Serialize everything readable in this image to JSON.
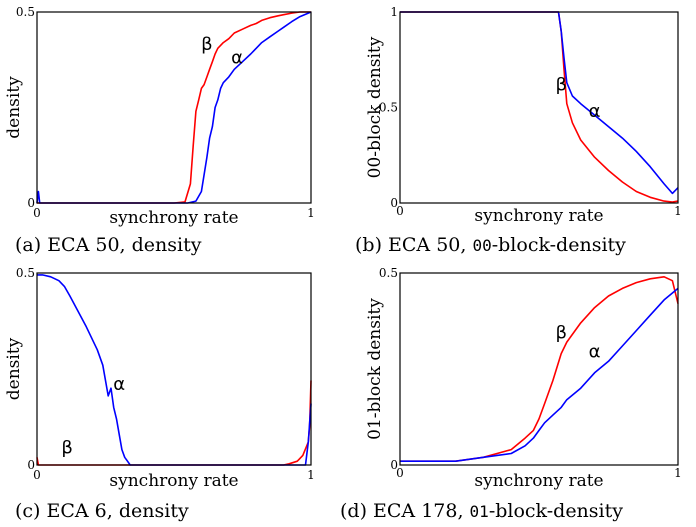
{
  "figure": {
    "panels": [
      {
        "caption_prefix": "(a) ECA 50, ",
        "caption_code": "",
        "caption_suffix": "density",
        "chart_data": {
          "type": "line",
          "xlabel": "synchrony rate",
          "ylabel": "density",
          "xlim": [
            0,
            1
          ],
          "ylim": [
            0,
            0.5
          ],
          "xticks": [
            "0",
            "1"
          ],
          "yticks": [
            "0",
            "0.5"
          ],
          "grid": false,
          "series": [
            {
              "name": "β",
              "color": "#ff0000",
              "label_at": [
                0.62,
                0.4
              ],
              "x": [
                0,
                0.02,
                0.05,
                0.1,
                0.2,
                0.3,
                0.4,
                0.5,
                0.54,
                0.56,
                0.57,
                0.58,
                0.59,
                0.6,
                0.61,
                0.62,
                0.63,
                0.64,
                0.65,
                0.66,
                0.68,
                0.7,
                0.72,
                0.75,
                0.78,
                0.8,
                0.82,
                0.85,
                0.88,
                0.9,
                0.93,
                0.96,
                1.0
              ],
              "y": [
                0.0,
                0.0,
                0.0,
                0.0,
                0.0,
                0.0,
                0.0,
                0.0,
                0.003,
                0.05,
                0.15,
                0.24,
                0.27,
                0.3,
                0.31,
                0.33,
                0.35,
                0.37,
                0.39,
                0.405,
                0.42,
                0.43,
                0.445,
                0.455,
                0.465,
                0.47,
                0.478,
                0.485,
                0.49,
                0.493,
                0.497,
                0.5,
                0.5
              ]
            },
            {
              "name": "α",
              "color": "#0000ff",
              "label_at": [
                0.73,
                0.365
              ],
              "x": [
                0,
                0.005,
                0.01,
                0.05,
                0.1,
                0.2,
                0.3,
                0.4,
                0.5,
                0.55,
                0.58,
                0.6,
                0.62,
                0.63,
                0.64,
                0.65,
                0.66,
                0.67,
                0.68,
                0.7,
                0.72,
                0.75,
                0.78,
                0.8,
                0.82,
                0.85,
                0.88,
                0.9,
                0.93,
                0.96,
                1.0
              ],
              "y": [
                0.0,
                0.03,
                0.0,
                0.0,
                0.0,
                0.0,
                0.0,
                0.0,
                0.0,
                0.0,
                0.005,
                0.03,
                0.12,
                0.17,
                0.2,
                0.25,
                0.27,
                0.3,
                0.315,
                0.33,
                0.35,
                0.37,
                0.39,
                0.405,
                0.42,
                0.435,
                0.45,
                0.46,
                0.475,
                0.488,
                0.5
              ]
            }
          ]
        }
      },
      {
        "caption_prefix": "(b) ECA 50, ",
        "caption_code": "00",
        "caption_suffix": "-block-density",
        "chart_data": {
          "type": "line",
          "xlabel": "synchrony rate",
          "ylabel": "00-block density",
          "xlim": [
            0,
            1
          ],
          "ylim": [
            0,
            1
          ],
          "xticks": [
            "0",
            "1"
          ],
          "yticks": [
            "0",
            "0.5",
            "1"
          ],
          "grid": false,
          "series": [
            {
              "name": "β",
              "color": "#ff0000",
              "label_at": [
                0.58,
                0.59
              ],
              "x": [
                0,
                0.2,
                0.4,
                0.5,
                0.55,
                0.57,
                0.58,
                0.59,
                0.6,
                0.62,
                0.65,
                0.7,
                0.75,
                0.8,
                0.85,
                0.9,
                0.95,
                0.98,
                1.0
              ],
              "y": [
                1.0,
                1.0,
                1.0,
                1.0,
                1.0,
                1.0,
                0.9,
                0.7,
                0.52,
                0.42,
                0.33,
                0.24,
                0.17,
                0.11,
                0.06,
                0.03,
                0.01,
                0.005,
                0.01
              ]
            },
            {
              "name": "α",
              "color": "#0000ff",
              "label_at": [
                0.7,
                0.45
              ],
              "x": [
                0,
                0.2,
                0.4,
                0.5,
                0.55,
                0.57,
                0.58,
                0.59,
                0.6,
                0.62,
                0.65,
                0.7,
                0.75,
                0.8,
                0.85,
                0.9,
                0.95,
                0.98,
                1.0
              ],
              "y": [
                1.0,
                1.0,
                1.0,
                1.0,
                1.0,
                1.0,
                0.9,
                0.76,
                0.63,
                0.56,
                0.52,
                0.46,
                0.4,
                0.34,
                0.27,
                0.19,
                0.1,
                0.05,
                0.08
              ]
            }
          ]
        }
      },
      {
        "caption_prefix": "(c) ECA 6, ",
        "caption_code": "",
        "caption_suffix": "density",
        "chart_data": {
          "type": "line",
          "xlabel": "synchrony rate",
          "ylabel": "density",
          "xlim": [
            0,
            1
          ],
          "ylim": [
            0,
            0.5
          ],
          "xticks": [
            "0",
            "1"
          ],
          "yticks": [
            "0",
            "0.5"
          ],
          "grid": false,
          "series": [
            {
              "name": "β",
              "color": "#ff0000",
              "label_at": [
                0.11,
                0.03
              ],
              "x": [
                0,
                0.005,
                0.01,
                0.1,
                0.3,
                0.5,
                0.7,
                0.9,
                0.92,
                0.95,
                0.97,
                0.99,
                0.995,
                1.0
              ],
              "y": [
                0.02,
                0.0,
                0.0,
                0.0,
                0.0,
                0.0,
                0.0,
                0.0,
                0.003,
                0.01,
                0.025,
                0.06,
                0.1,
                0.22
              ]
            },
            {
              "name": "α",
              "color": "#0000ff",
              "label_at": [
                0.3,
                0.195
              ],
              "x": [
                0,
                0.02,
                0.05,
                0.08,
                0.1,
                0.12,
                0.15,
                0.18,
                0.2,
                0.22,
                0.24,
                0.25,
                0.26,
                0.27,
                0.28,
                0.29,
                0.3,
                0.31,
                0.32,
                0.34,
                0.36,
                0.5,
                0.7,
                0.9,
                0.98,
                0.99,
                1.0
              ],
              "y": [
                0.495,
                0.495,
                0.49,
                0.48,
                0.465,
                0.44,
                0.4,
                0.36,
                0.33,
                0.3,
                0.26,
                0.22,
                0.18,
                0.2,
                0.15,
                0.12,
                0.08,
                0.04,
                0.02,
                0.0,
                0.0,
                0.0,
                0.0,
                0.0,
                0.0,
                0.06,
                0.16
              ]
            }
          ]
        }
      },
      {
        "caption_prefix": "(d) ECA 178, ",
        "caption_code": "01",
        "caption_suffix": "-block-density",
        "chart_data": {
          "type": "line",
          "xlabel": "synchrony rate",
          "ylabel": "01-block density",
          "xlim": [
            0,
            1
          ],
          "ylim": [
            0,
            0.5
          ],
          "xticks": [
            "0",
            "1"
          ],
          "yticks": [
            "0",
            "0.5"
          ],
          "grid": false,
          "series": [
            {
              "name": "β",
              "color": "#ff0000",
              "label_at": [
                0.58,
                0.33
              ],
              "x": [
                0,
                0.1,
                0.2,
                0.3,
                0.4,
                0.45,
                0.48,
                0.5,
                0.52,
                0.55,
                0.58,
                0.6,
                0.65,
                0.7,
                0.75,
                0.8,
                0.85,
                0.9,
                0.95,
                0.98,
                1.0
              ],
              "y": [
                0.01,
                0.01,
                0.01,
                0.02,
                0.04,
                0.07,
                0.09,
                0.12,
                0.16,
                0.22,
                0.29,
                0.32,
                0.37,
                0.41,
                0.44,
                0.46,
                0.475,
                0.485,
                0.49,
                0.48,
                0.42
              ]
            },
            {
              "name": "α",
              "color": "#0000ff",
              "label_at": [
                0.7,
                0.28
              ],
              "x": [
                0,
                0.1,
                0.2,
                0.3,
                0.4,
                0.45,
                0.48,
                0.5,
                0.52,
                0.55,
                0.58,
                0.6,
                0.65,
                0.7,
                0.75,
                0.8,
                0.85,
                0.9,
                0.95,
                1.0
              ],
              "y": [
                0.01,
                0.01,
                0.01,
                0.02,
                0.03,
                0.05,
                0.07,
                0.09,
                0.11,
                0.13,
                0.15,
                0.17,
                0.2,
                0.24,
                0.27,
                0.31,
                0.35,
                0.39,
                0.43,
                0.46
              ]
            }
          ]
        }
      }
    ]
  }
}
